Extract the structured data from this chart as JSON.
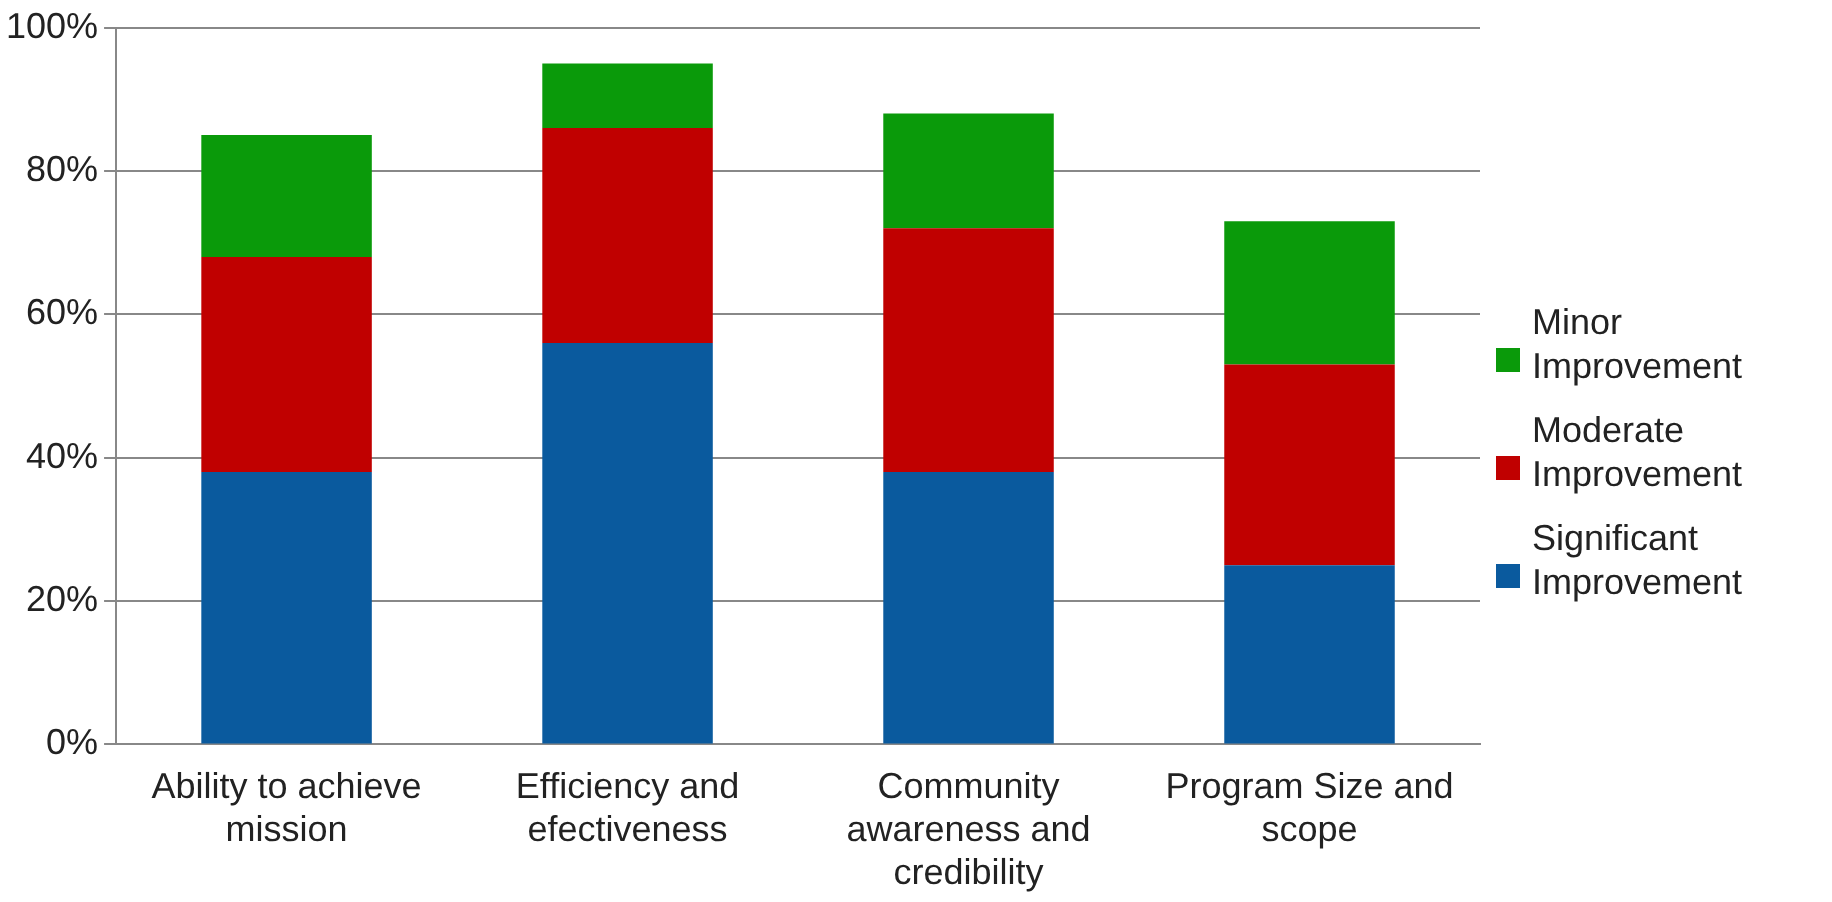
{
  "chart_data": {
    "type": "bar",
    "stacked": true,
    "categories": [
      "Ability to achieve mission",
      "Efficiency and efectiveness",
      "Community awareness and credibility",
      "Program Size and scope"
    ],
    "series": [
      {
        "name": "Significant Improvement",
        "color": "#0a5a9e",
        "values": [
          38,
          56,
          38,
          25
        ]
      },
      {
        "name": "Moderate Improvement",
        "color": "#c00000",
        "values": [
          30,
          30,
          34,
          28
        ]
      },
      {
        "name": "Minor Improvement",
        "color": "#0a9a0a",
        "values": [
          17,
          9,
          16,
          20
        ]
      }
    ],
    "ylim": [
      0,
      100
    ],
    "yticks": [
      {
        "value": 0,
        "label": "0%"
      },
      {
        "value": 20,
        "label": "20%"
      },
      {
        "value": 40,
        "label": "40%"
      },
      {
        "value": 60,
        "label": "60%"
      },
      {
        "value": 80,
        "label": "80%"
      },
      {
        "value": 100,
        "label": "100%"
      }
    ],
    "grid": "y",
    "legend": "right"
  }
}
